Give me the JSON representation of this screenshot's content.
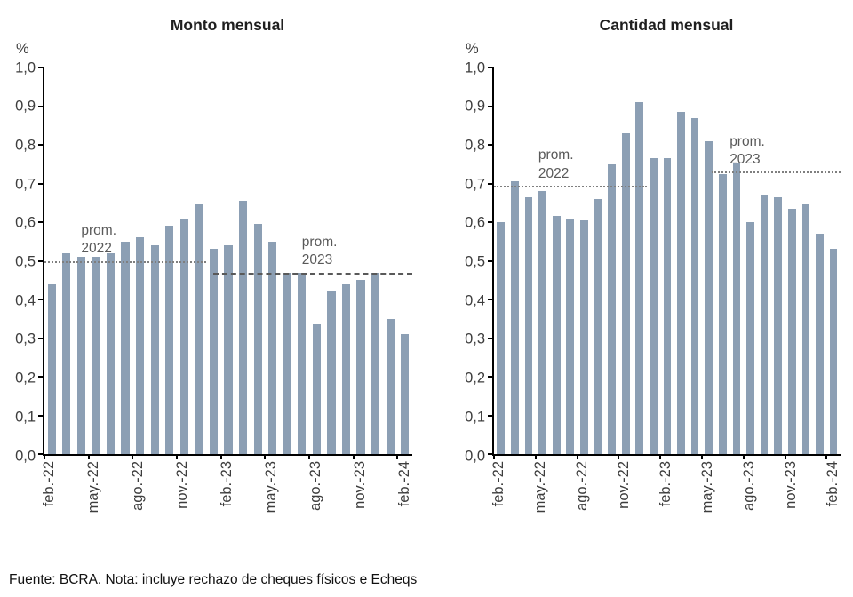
{
  "footer": {
    "source_note": "Fuente: BCRA. Nota: incluye rechazo de cheques físicos e Echeqs"
  },
  "styles": {
    "bar_color": "#8c9fb4",
    "ref_line_color": "#7f7f7f",
    "ref_label_color": "#595959"
  },
  "chart_data": [
    {
      "type": "bar",
      "title": "Monto mensual",
      "ylabel": "%",
      "ylim": [
        0.0,
        1.0
      ],
      "ytick_step": 0.1,
      "ytick_labels": [
        "0,0",
        "0,1",
        "0,2",
        "0,3",
        "0,4",
        "0,5",
        "0,6",
        "0,7",
        "0,8",
        "0,9",
        "1,0"
      ],
      "grid": false,
      "legend": "none",
      "categories": [
        "feb.-22",
        "",
        "",
        "may.-22",
        "",
        "",
        "ago.-22",
        "",
        "",
        "nov.-22",
        "",
        "",
        "feb.-23",
        "",
        "",
        "may.-23",
        "",
        "",
        "ago.-23",
        "",
        "",
        "nov.-23",
        "",
        "",
        "feb.-24"
      ],
      "values": [
        0.44,
        0.52,
        0.51,
        0.51,
        0.52,
        0.55,
        0.56,
        0.54,
        0.59,
        0.61,
        0.645,
        0.53,
        0.54,
        0.655,
        0.595,
        0.55,
        0.47,
        0.47,
        0.335,
        0.42,
        0.44,
        0.45,
        0.47,
        0.35,
        0.31
      ],
      "annotations": [
        {
          "label_line1": "prom.",
          "label_line2": "2022",
          "value": 0.5,
          "from_index": 0,
          "to_index": 11,
          "label_index": 2.5,
          "line_style": "dotted"
        },
        {
          "label_line1": "prom.",
          "label_line2": "2023",
          "value": 0.47,
          "from_index": 11.5,
          "to_index": 25,
          "label_index": 17.5,
          "line_style": "dashed"
        }
      ]
    },
    {
      "type": "bar",
      "title": "Cantidad mensual",
      "ylabel": "%",
      "ylim": [
        0.0,
        1.0
      ],
      "ytick_step": 0.1,
      "ytick_labels": [
        "0,0",
        "0,1",
        "0,2",
        "0,3",
        "0,4",
        "0,5",
        "0,6",
        "0,7",
        "0,8",
        "0,9",
        "1,0"
      ],
      "grid": false,
      "legend": "none",
      "categories": [
        "feb.-22",
        "",
        "",
        "may.-22",
        "",
        "",
        "ago.-22",
        "",
        "",
        "nov.-22",
        "",
        "",
        "feb.-23",
        "",
        "",
        "may.-23",
        "",
        "",
        "ago.-23",
        "",
        "",
        "nov.-23",
        "",
        "",
        "feb.-24"
      ],
      "values": [
        0.6,
        0.705,
        0.665,
        0.68,
        0.615,
        0.61,
        0.605,
        0.66,
        0.75,
        0.83,
        0.91,
        0.765,
        0.765,
        0.885,
        0.87,
        0.81,
        0.725,
        0.755,
        0.6,
        0.67,
        0.665,
        0.635,
        0.645,
        0.57,
        0.53
      ],
      "annotations": [
        {
          "label_line1": "prom.",
          "label_line2": "2022",
          "value": 0.695,
          "from_index": 0,
          "to_index": 11,
          "label_index": 3.2,
          "line_style": "dotted"
        },
        {
          "label_line1": "prom.",
          "label_line2": "2023",
          "value": 0.73,
          "from_index": 15.7,
          "to_index": 25,
          "label_index": 17,
          "line_style": "dotted"
        }
      ]
    }
  ]
}
